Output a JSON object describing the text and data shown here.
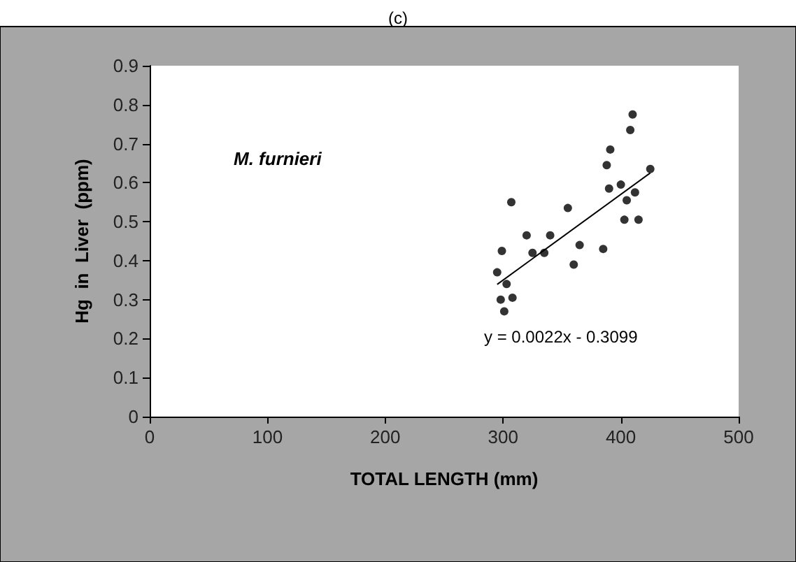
{
  "chart_data": {
    "type": "scatter",
    "title": "(c)",
    "xlabel": "TOTAL LENGTH (mm)",
    "ylabel": "Hg  in  Liver  (ppm)",
    "annotations": [
      "M. furnieri",
      "y = 0.0022x - 0.3099"
    ],
    "series": [
      {
        "color": "#000000",
        "x": [
          295,
          299,
          298,
          301,
          303,
          307,
          308,
          320,
          325,
          335,
          340,
          355,
          360,
          365,
          385,
          388,
          391,
          390,
          400,
          403,
          405,
          408,
          410,
          412,
          415,
          425
        ],
        "values": [
          0.37,
          0.425,
          0.3,
          0.27,
          0.34,
          0.55,
          0.305,
          0.465,
          0.42,
          0.42,
          0.465,
          0.535,
          0.39,
          0.44,
          0.43,
          0.645,
          0.685,
          0.585,
          0.595,
          0.505,
          0.555,
          0.735,
          0.775,
          0.575,
          0.505,
          0.635
        ]
      },
      {
        "type": "line",
        "color": "#000000",
        "marker": "none",
        "x": [
          295,
          425
        ],
        "values": [
          0.339,
          0.625
        ]
      }
    ],
    "xlim": [
      0,
      500
    ],
    "xticks": [
      0,
      100,
      200,
      300,
      400,
      500
    ],
    "ylim": [
      0,
      0.9
    ],
    "yticks": [
      0,
      0.1,
      0.2,
      0.3,
      0.4,
      0.5,
      0.6,
      0.7,
      0.8,
      0.9
    ],
    "grid": false,
    "marker": "circle"
  }
}
